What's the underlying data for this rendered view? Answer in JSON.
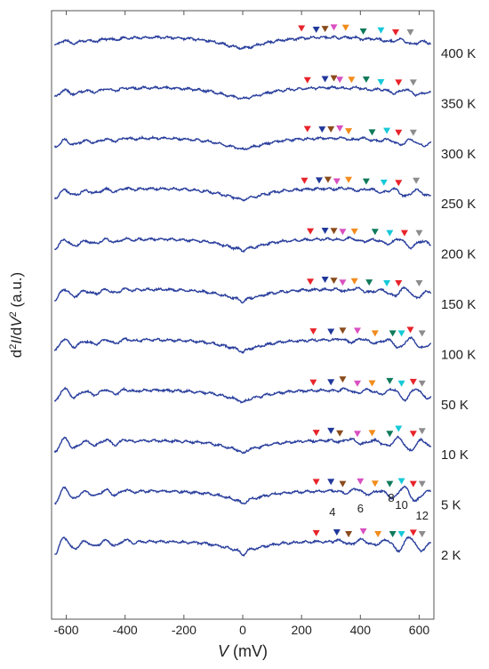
{
  "chart_data": {
    "type": "line",
    "xlabel": "V (mV)",
    "xlabel_parts": {
      "var": "V",
      "unit": " (mV)"
    },
    "ylabel": "d2I/dV2 (a.u.)",
    "ylabel_parts": {
      "d": "d",
      "exp": "2",
      "mid": "I/dV",
      "exp2": "2",
      "unit": " (a.u.)"
    },
    "xlim": [
      -650,
      650
    ],
    "x_ticks": [
      -600,
      -400,
      -200,
      0,
      200,
      400,
      600
    ],
    "x_tick_labels": [
      "-600",
      "-400",
      "-200",
      "0",
      "200",
      "400",
      "600"
    ],
    "y_ticks": false,
    "grid": false,
    "curve_color": "#2a3f9d",
    "marker_colors": [
      "#e8232a",
      "#21389a",
      "#8a4b1c",
      "#d950c0",
      "#f28c1c",
      "#0f7a5a",
      "#16c9d8",
      "#e8232a",
      "#8c8c8c"
    ],
    "series": [
      {
        "name": "400 K",
        "markers_mV": [
          200,
          250,
          280,
          310,
          350,
          410,
          470,
          520,
          570
        ]
      },
      {
        "name": "350 K",
        "markers_mV": [
          220,
          280,
          310,
          330,
          370,
          420,
          470,
          530,
          580
        ]
      },
      {
        "name": "300 K",
        "markers_mV": [
          220,
          270,
          300,
          330,
          360,
          440,
          490,
          530,
          580
        ]
      },
      {
        "name": "250 K",
        "markers_mV": [
          210,
          260,
          290,
          320,
          360,
          420,
          480,
          530,
          590
        ]
      },
      {
        "name": "200 K",
        "markers_mV": [
          230,
          280,
          310,
          340,
          380,
          450,
          500,
          550,
          600
        ]
      },
      {
        "name": "150 K",
        "markers_mV": [
          230,
          280,
          310,
          340,
          380,
          430,
          490,
          530,
          600
        ]
      },
      {
        "name": "100 K",
        "markers_mV": [
          240,
          300,
          340,
          390,
          450,
          510,
          540,
          570,
          610
        ]
      },
      {
        "name": "50 K",
        "markers_mV": [
          240,
          300,
          340,
          390,
          440,
          500,
          540,
          580,
          610
        ]
      },
      {
        "name": "10 K",
        "markers_mV": [
          250,
          300,
          330,
          390,
          440,
          500,
          530,
          580,
          610
        ]
      },
      {
        "name": "5 K",
        "markers_mV": [
          250,
          300,
          340,
          400,
          450,
          500,
          540,
          580,
          610
        ]
      },
      {
        "name": "2 K",
        "markers_mV": [
          250,
          320,
          360,
          410,
          460,
          510,
          540,
          580,
          610
        ]
      }
    ],
    "annotations": [
      {
        "text": "4",
        "x_mV": 305
      },
      {
        "text": "6",
        "x_mV": 400
      },
      {
        "text": "8",
        "x_mV": 505
      },
      {
        "text": "10",
        "x_mV": 540
      },
      {
        "text": "12",
        "x_mV": 610
      }
    ]
  }
}
